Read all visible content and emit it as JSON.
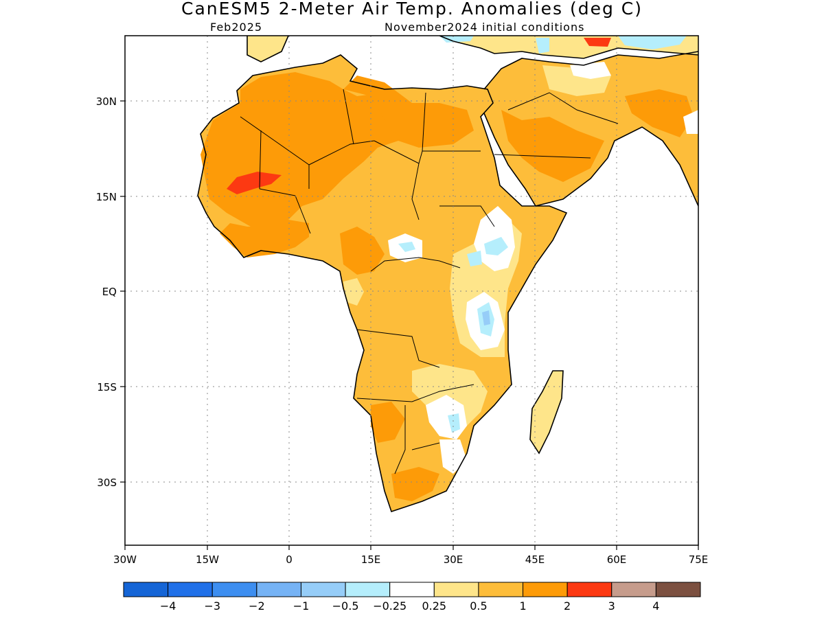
{
  "title": "CanESM5 2-Meter Air Temp. Anomalies (deg C)",
  "subtitle_left": "Feb2025",
  "subtitle_right": "November2024 initial conditions",
  "map": {
    "lon_labels": [
      "30W",
      "15W",
      "0",
      "15E",
      "30E",
      "45E",
      "60E",
      "75E"
    ],
    "lat_labels": [
      "30N",
      "15N",
      "EQ",
      "15S",
      "30S"
    ],
    "lon_range": [
      -30,
      75
    ],
    "lat_range": [
      -40,
      40
    ],
    "grid": "dotted"
  },
  "colorbar": {
    "labels": [
      "-4",
      "-3",
      "-2",
      "-1",
      "-0.5",
      "-0.25",
      "0.25",
      "0.5",
      "1",
      "2",
      "3",
      "4"
    ],
    "colors": [
      "#1565d6",
      "#2070e8",
      "#3d8ef0",
      "#76b3f5",
      "#96cdf8",
      "#b5eefc",
      "#ffffff",
      "#fee58a",
      "#fdbd3a",
      "#fd9b08",
      "#fc3912",
      "#c69c8c",
      "#7c5040"
    ]
  }
}
